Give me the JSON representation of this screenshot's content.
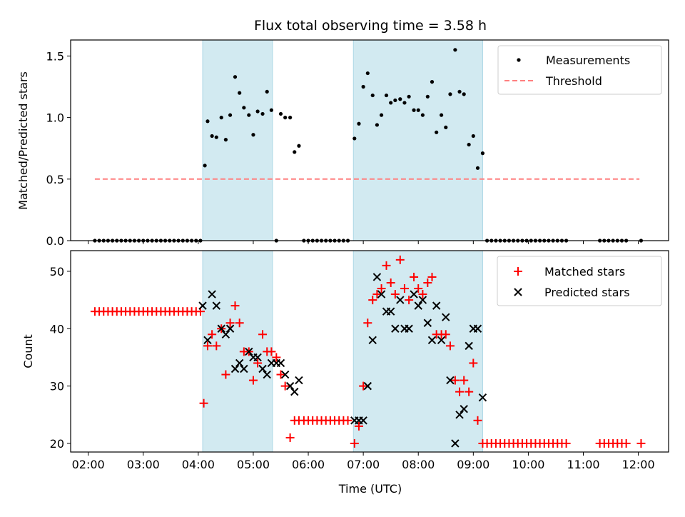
{
  "chart_data": {
    "type": "scatter",
    "title": "Flux total observing time = 3.58 h",
    "xlabel": "Time (UTC)",
    "x_tick_labels": [
      "02:00",
      "03:00",
      "04:00",
      "05:00",
      "06:00",
      "07:00",
      "08:00",
      "09:00",
      "10:00",
      "11:00",
      "12:00"
    ],
    "x_ticks_hours": [
      2,
      3,
      4,
      5,
      6,
      7,
      8,
      9,
      10,
      11,
      12
    ],
    "xlim_hours": [
      1.68,
      12.55
    ],
    "shaded_intervals_hours": [
      [
        4.08,
        5.35
      ],
      [
        6.82,
        9.17
      ]
    ],
    "shade_color": "#add8e6",
    "top_panel": {
      "ylabel": "Matched/Predicted stars",
      "ylim": [
        0,
        1.63
      ],
      "y_ticks": [
        0.0,
        0.5,
        1.0,
        1.5
      ],
      "y_tick_labels": [
        "0.0",
        "0.5",
        "1.0",
        "1.5"
      ],
      "threshold": {
        "name": "Threshold",
        "value": 0.5,
        "x_range_hours": [
          2.12,
          12.02
        ],
        "color": "#ff7f7f"
      },
      "measurements": {
        "name": "Measurements",
        "color": "#000000",
        "x_hours": [
          2.12,
          2.2,
          2.28,
          2.36,
          2.44,
          2.52,
          2.6,
          2.68,
          2.76,
          2.84,
          2.92,
          3.0,
          3.08,
          3.16,
          3.24,
          3.32,
          3.4,
          3.48,
          3.56,
          3.64,
          3.72,
          3.8,
          3.88,
          3.96,
          4.04,
          4.12,
          4.17,
          4.25,
          4.33,
          4.42,
          4.5,
          4.58,
          4.67,
          4.75,
          4.83,
          4.92,
          5.0,
          5.08,
          5.17,
          5.25,
          5.33,
          5.42,
          5.5,
          5.58,
          5.67,
          5.75,
          5.83,
          5.92,
          6.0,
          6.08,
          6.16,
          6.24,
          6.32,
          6.4,
          6.48,
          6.56,
          6.64,
          6.72,
          6.84,
          6.92,
          7.0,
          7.08,
          7.17,
          7.25,
          7.33,
          7.42,
          7.5,
          7.58,
          7.67,
          7.75,
          7.83,
          7.92,
          8.0,
          8.08,
          8.17,
          8.25,
          8.33,
          8.42,
          8.5,
          8.58,
          8.67,
          8.75,
          8.83,
          8.92,
          9.0,
          9.08,
          9.17,
          9.25,
          9.33,
          9.41,
          9.49,
          9.57,
          9.65,
          9.73,
          9.81,
          9.89,
          9.97,
          10.05,
          10.13,
          10.21,
          10.29,
          10.37,
          10.45,
          10.53,
          10.61,
          10.69,
          11.3,
          11.38,
          11.46,
          11.54,
          11.62,
          11.7,
          11.78,
          12.05
        ],
        "y": [
          0,
          0,
          0,
          0,
          0,
          0,
          0,
          0,
          0,
          0,
          0,
          0,
          0,
          0,
          0,
          0,
          0,
          0,
          0,
          0,
          0,
          0,
          0,
          0,
          0,
          0.61,
          0.97,
          0.85,
          0.84,
          1.0,
          0.82,
          1.02,
          1.33,
          1.2,
          1.08,
          1.02,
          0.86,
          1.05,
          1.03,
          1.21,
          1.06,
          0,
          1.03,
          1.0,
          1.0,
          0.72,
          0.77,
          0,
          0,
          0,
          0,
          0,
          0,
          0,
          0,
          0,
          0,
          0,
          0.83,
          0.95,
          1.25,
          1.36,
          1.18,
          0.94,
          1.02,
          1.18,
          1.12,
          1.14,
          1.15,
          1.12,
          1.17,
          1.06,
          1.06,
          1.02,
          1.17,
          1.29,
          0.88,
          1.02,
          0.92,
          1.19,
          1.55,
          1.21,
          1.19,
          0.78,
          0.85,
          0.59,
          0.71,
          0,
          0,
          0,
          0,
          0,
          0,
          0,
          0,
          0,
          0,
          0,
          0,
          0,
          0,
          0,
          0,
          0,
          0,
          0,
          0,
          0,
          0,
          0,
          0,
          0,
          0,
          0
        ]
      }
    },
    "bottom_panel": {
      "ylabel": "Count",
      "ylim": [
        18.5,
        53.6
      ],
      "y_ticks": [
        20,
        30,
        40,
        50
      ],
      "y_tick_labels": [
        "20",
        "30",
        "40",
        "50"
      ],
      "series": [
        {
          "name": "Matched stars",
          "marker": "+",
          "color": "#ff0000",
          "x_hours": [
            2.12,
            2.2,
            2.28,
            2.36,
            2.44,
            2.52,
            2.6,
            2.68,
            2.76,
            2.84,
            2.92,
            3.0,
            3.08,
            3.16,
            3.24,
            3.32,
            3.4,
            3.48,
            3.56,
            3.64,
            3.72,
            3.8,
            3.88,
            3.96,
            4.04,
            4.1,
            4.17,
            4.25,
            4.33,
            4.42,
            4.5,
            4.58,
            4.67,
            4.75,
            4.83,
            4.92,
            5.0,
            5.08,
            5.17,
            5.25,
            5.33,
            5.42,
            5.5,
            5.58,
            5.67,
            5.75,
            5.83,
            5.92,
            6.0,
            6.08,
            6.16,
            6.24,
            6.32,
            6.4,
            6.48,
            6.56,
            6.64,
            6.72,
            6.84,
            6.92,
            7.0,
            7.08,
            7.17,
            7.25,
            7.33,
            7.42,
            7.5,
            7.58,
            7.67,
            7.75,
            7.83,
            7.92,
            8.0,
            8.08,
            8.17,
            8.25,
            8.33,
            8.42,
            8.5,
            8.58,
            8.67,
            8.75,
            8.83,
            8.92,
            9.0,
            9.08,
            9.17,
            9.25,
            9.33,
            9.41,
            9.49,
            9.57,
            9.65,
            9.73,
            9.81,
            9.89,
            9.97,
            10.05,
            10.13,
            10.21,
            10.29,
            10.37,
            10.45,
            10.53,
            10.61,
            10.69,
            11.3,
            11.38,
            11.46,
            11.54,
            11.62,
            11.7,
            11.78,
            12.05
          ],
          "values": [
            43,
            43,
            43,
            43,
            43,
            43,
            43,
            43,
            43,
            43,
            43,
            43,
            43,
            43,
            43,
            43,
            43,
            43,
            43,
            43,
            43,
            43,
            43,
            43,
            43,
            27,
            37,
            39,
            37,
            40,
            32,
            41,
            44,
            41,
            36,
            36,
            31,
            34,
            39,
            36,
            36,
            35,
            32,
            30,
            21,
            24,
            24,
            24,
            24,
            24,
            24,
            24,
            24,
            24,
            24,
            24,
            24,
            24,
            20,
            23,
            30,
            41,
            45,
            46,
            47,
            51,
            48,
            46,
            52,
            47,
            45,
            49,
            47,
            46,
            48,
            49,
            39,
            39,
            39,
            37,
            31,
            29,
            31,
            29,
            34,
            24,
            20,
            20,
            20,
            20,
            20,
            20,
            20,
            20,
            20,
            20,
            20,
            20,
            20,
            20,
            20,
            20,
            20,
            20,
            20,
            20,
            20,
            20,
            20,
            20,
            20,
            20,
            20,
            20
          ]
        },
        {
          "name": "Predicted stars",
          "marker": "x",
          "color": "#000000",
          "x_hours": [
            4.08,
            4.17,
            4.25,
            4.33,
            4.42,
            4.5,
            4.58,
            4.67,
            4.75,
            4.83,
            4.92,
            5.0,
            5.08,
            5.17,
            5.25,
            5.33,
            5.42,
            5.5,
            5.58,
            5.67,
            5.75,
            5.83,
            6.84,
            6.92,
            7.0,
            7.08,
            7.17,
            7.25,
            7.33,
            7.42,
            7.5,
            7.58,
            7.67,
            7.75,
            7.83,
            7.92,
            8.0,
            8.08,
            8.17,
            8.25,
            8.33,
            8.42,
            8.5,
            8.58,
            8.67,
            8.75,
            8.83,
            8.92,
            9.0,
            9.08,
            9.17
          ],
          "values": [
            44,
            38,
            46,
            44,
            40,
            39,
            40,
            33,
            34,
            33,
            36,
            35,
            35,
            33,
            32,
            34,
            34,
            34,
            32,
            30,
            29,
            31,
            24,
            24,
            24,
            30,
            38,
            49,
            46,
            43,
            43,
            40,
            45,
            40,
            40,
            46,
            44,
            45,
            41,
            38,
            44,
            38,
            42,
            31,
            20,
            25,
            26,
            37,
            40,
            40,
            28
          ]
        }
      ]
    }
  }
}
